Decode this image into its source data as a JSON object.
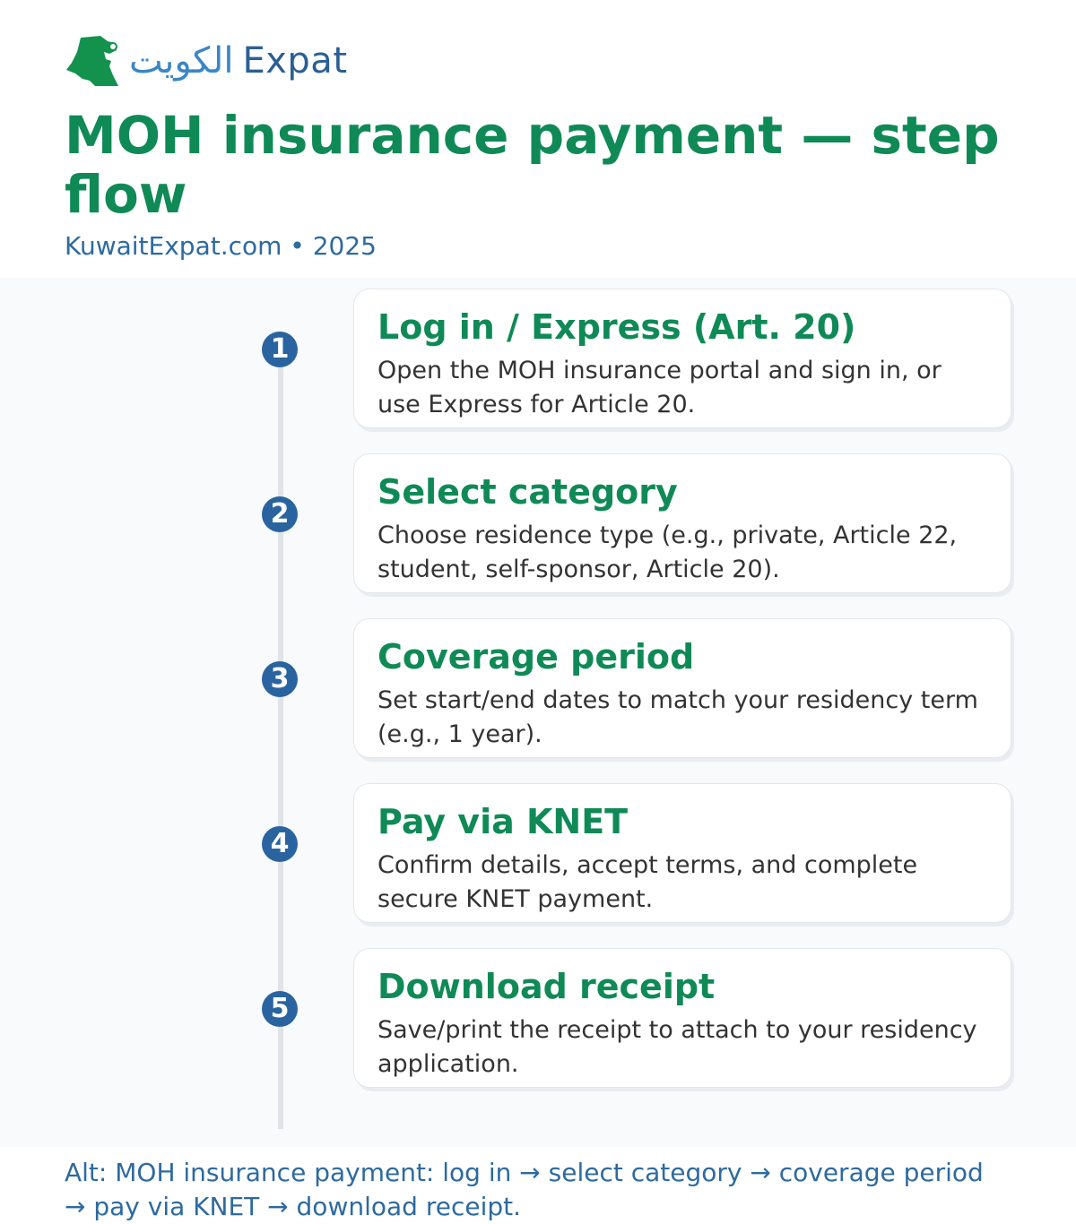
{
  "logo": {
    "arabic": "الكويت",
    "latin": "Expat"
  },
  "title": "MOH insurance payment — step flow",
  "watermark": "KuwaitExpat.com • 2025",
  "colors": {
    "green": "#0f8a56",
    "blue": "#2a64a0"
  },
  "steps": [
    {
      "num": "1",
      "title": "Log in / Express (Art. 20)",
      "desc": "Open the MOH insurance portal and sign in, or use Express for Article 20."
    },
    {
      "num": "2",
      "title": "Select category",
      "desc": "Choose residence type (e.g., private, Article 22, student, self-sponsor, Article 20)."
    },
    {
      "num": "3",
      "title": "Coverage period",
      "desc": "Set start/end dates to match your residency term (e.g., 1 year)."
    },
    {
      "num": "4",
      "title": "Pay via KNET",
      "desc": "Confirm details, accept terms, and complete secure KNET payment."
    },
    {
      "num": "5",
      "title": "Download receipt",
      "desc": "Save/print the receipt to attach to your residency application."
    }
  ],
  "alt": "Alt: MOH insurance payment: log in → select category → coverage period → pay via KNET → download receipt."
}
